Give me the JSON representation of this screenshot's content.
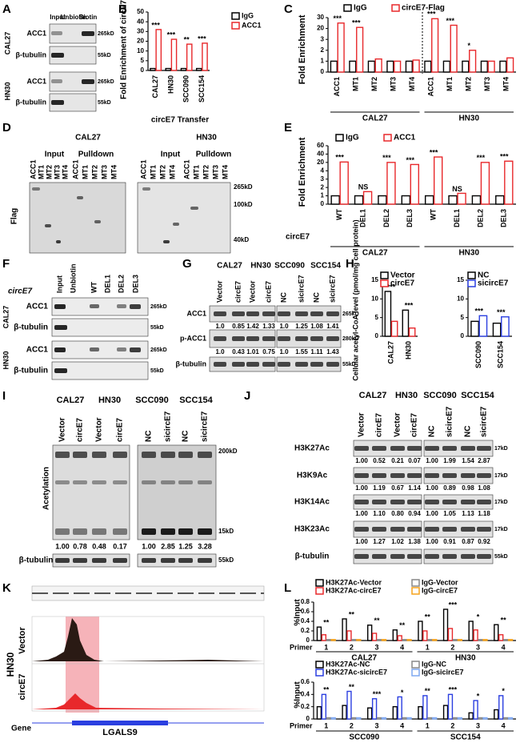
{
  "A": {
    "label": "A",
    "lanes": [
      "Input",
      "Unbiotin",
      "Biotin"
    ],
    "groups": [
      "CAL27",
      "HN30"
    ],
    "bands": [
      "ACC1",
      "β-tubulin",
      "ACC1",
      "β-tubulin"
    ],
    "sizes": [
      "265kD",
      "55kD",
      "265kD",
      "55kD"
    ]
  },
  "B": {
    "label": "B",
    "chart": {
      "type": "bar",
      "ylabel": "Fold Enrichment of circE7",
      "xlabel": "circE7 Transfer",
      "categories": [
        "CAL27",
        "HN30",
        "SCC090",
        "SCC154"
      ],
      "series": [
        {
          "name": "IgG",
          "color": "#000000",
          "values": [
            1,
            1,
            1,
            1
          ]
        },
        {
          "name": "ACC1",
          "color": "#e8282b",
          "values": [
            32,
            22,
            17,
            18
          ]
        }
      ],
      "sig": [
        "***",
        "***",
        "**",
        "***"
      ],
      "ylim": [
        0,
        50
      ],
      "yticks": [
        0,
        5,
        10,
        20,
        30,
        40,
        50
      ]
    }
  },
  "C": {
    "label": "C",
    "chart": {
      "type": "bar",
      "ylabel": "Fold Enrichment",
      "categories": [
        "ACC1",
        "MT1",
        "MT2",
        "MT3",
        "MT4",
        "ACC1",
        "MT1",
        "MT2",
        "MT3",
        "MT4"
      ],
      "groups": [
        "CAL27",
        "HN30"
      ],
      "series": [
        {
          "name": "IgG",
          "color": "#000000",
          "values": [
            1,
            1,
            1,
            1,
            1,
            1,
            1,
            1,
            1,
            1
          ]
        },
        {
          "name": "circE7-Flag",
          "color": "#e8282b",
          "values": [
            25,
            21,
            1.2,
            1,
            1.1,
            29,
            23,
            2,
            1,
            1.3
          ]
        }
      ],
      "sig": [
        "***",
        "***",
        null,
        null,
        null,
        "***",
        "***",
        "*",
        null,
        null
      ],
      "ylim": [
        0,
        30
      ],
      "yticks": [
        0,
        1,
        2,
        3,
        20,
        30
      ]
    }
  },
  "D": {
    "label": "D",
    "groups": [
      "CAL27",
      "HN30"
    ],
    "subgroups": [
      "Input",
      "Pulldown",
      "Input",
      "Pulldown"
    ],
    "lanes": [
      "ACC1",
      "MT1",
      "MT2",
      "MT3",
      "MT4",
      "ACC1",
      "MT1",
      "MT2",
      "MT3",
      "MT4",
      "ACC1",
      "MT1",
      "MT2",
      "MT4",
      "ACC1",
      "MT1",
      "MT2",
      "MT3",
      "MT4"
    ],
    "blot": "Flag",
    "sizes": [
      "265kD",
      "100kD",
      "40kD"
    ]
  },
  "E": {
    "label": "E",
    "row_label": "circE7",
    "chart": {
      "type": "bar",
      "ylabel": "Fold Enrichment",
      "categories": [
        "WT",
        "DEL1",
        "DEL2",
        "DEL3",
        "WT",
        "DEL1",
        "DEL2",
        "DEL3"
      ],
      "groups": [
        "CAL27",
        "HN30"
      ],
      "series": [
        {
          "name": "IgG",
          "color": "#000000",
          "values": [
            1,
            1,
            1,
            1,
            1,
            1,
            1,
            1
          ]
        },
        {
          "name": "ACC1",
          "color": "#e8282b",
          "values": [
            21,
            1.5,
            20,
            16,
            33,
            1.3,
            20,
            23
          ]
        }
      ],
      "sig": [
        "***",
        "NS",
        "***",
        "***",
        "***",
        "NS",
        "***",
        "***"
      ],
      "ylim": [
        0,
        60
      ],
      "yticks": [
        0,
        1,
        2,
        3,
        4,
        20,
        40,
        60
      ]
    }
  },
  "F": {
    "label": "F",
    "row_label": "circE7",
    "lanes": [
      "Input",
      "Unbiotin",
      "WT",
      "DEL1",
      "DEL2",
      "DEL3"
    ],
    "groups": [
      "CAL27",
      "HN30"
    ],
    "bands": [
      "ACC1",
      "β-tubulin",
      "ACC1",
      "β-tubulin"
    ],
    "sizes": [
      "265kD",
      "55kD",
      "265kD",
      "55kD"
    ]
  },
  "G": {
    "label": "G",
    "groups": [
      "CAL27",
      "HN30",
      "SCC090",
      "SCC154"
    ],
    "lanes": [
      "Vector",
      "circE7",
      "Vector",
      "circE7",
      "NC",
      "sicircE7",
      "NC",
      "sicircE7"
    ],
    "rows": [
      {
        "name": "ACC1",
        "size": "265kD",
        "quant": [
          "1.0",
          "0.85",
          "1.42",
          "1.33",
          "1.0",
          "1.25",
          "1.08",
          "1.41"
        ]
      },
      {
        "name": "p-ACC1",
        "size": "280kD",
        "quant": [
          "1.0",
          "0.43",
          "1.01",
          "0.75",
          "1.0",
          "1.55",
          "1.11",
          "1.43"
        ]
      },
      {
        "name": "β-tubulin",
        "size": "55kD"
      }
    ]
  },
  "H": {
    "label": "H",
    "ylabel": "Cellular acetyl-CoA level (pmol/mg cell protein)",
    "charts": [
      {
        "type": "bar",
        "categories": [
          "CAL27",
          "HN30"
        ],
        "series": [
          {
            "name": "Vector",
            "color": "#000000",
            "values": [
              12,
              7
            ]
          },
          {
            "name": "circE7",
            "color": "#e8282b",
            "values": [
              4,
              2.2
            ]
          }
        ],
        "sig": [
          "***",
          "***"
        ],
        "ylim": [
          0,
          15
        ],
        "yticks": [
          0,
          5,
          10,
          15
        ]
      },
      {
        "type": "bar",
        "categories": [
          "SCC090",
          "SCC154"
        ],
        "series": [
          {
            "name": "NC",
            "color": "#000000",
            "values": [
              4,
              3.5
            ]
          },
          {
            "name": "sicircE7",
            "color": "#2b3fe0",
            "values": [
              5.5,
              5.2
            ]
          }
        ],
        "sig": [
          "***",
          "***"
        ],
        "ylim": [
          0,
          15
        ],
        "yticks": [
          0,
          5,
          10,
          15
        ]
      }
    ]
  },
  "I": {
    "label": "I",
    "groups": [
      "CAL27",
      "HN30",
      "SCC090",
      "SCC154"
    ],
    "lanes": [
      "Vector",
      "circE7",
      "Vector",
      "circE7",
      "NC",
      "sicircE7",
      "NC",
      "sicircE7"
    ],
    "blot": "Acetylation",
    "sizes": [
      "200kD",
      "15kD",
      "55kD"
    ],
    "quant": [
      "1.00",
      "0.78",
      "0.48",
      "0.17",
      "1.00",
      "2.85",
      "1.25",
      "3.28"
    ],
    "loading": "β-tubulin"
  },
  "J": {
    "label": "J",
    "groups": [
      "CAL27",
      "HN30",
      "SCC090",
      "SCC154"
    ],
    "lanes": [
      "Vector",
      "circE7",
      "Vector",
      "circE7",
      "NC",
      "sicircE7",
      "NC",
      "sicircE7"
    ],
    "rows": [
      {
        "name": "H3K27Ac",
        "size": "17kD",
        "quant": [
          "1.00",
          "0.52",
          "0.21",
          "0.07",
          "1.00",
          "1.99",
          "1.54",
          "2.87"
        ]
      },
      {
        "name": "H3K9Ac",
        "size": "17kD",
        "quant": [
          "1.00",
          "1.19",
          "0.67",
          "1.14",
          "1.00",
          "0.89",
          "0.98",
          "1.08"
        ]
      },
      {
        "name": "H3K14Ac",
        "size": "17kD",
        "quant": [
          "1.00",
          "1.10",
          "0.80",
          "0.94",
          "1.00",
          "1.05",
          "1.13",
          "1.18"
        ]
      },
      {
        "name": "H3K23Ac",
        "size": "17kD",
        "quant": [
          "1.00",
          "1.27",
          "1.02",
          "1.38",
          "1.00",
          "0.91",
          "0.87",
          "0.92"
        ]
      },
      {
        "name": "β-tubulin",
        "size": "55kD"
      }
    ]
  },
  "K": {
    "label": "K",
    "cell": "HN30",
    "tracks": [
      "Vector",
      "circE7"
    ],
    "gene_label": "Gene",
    "gene": "LGALS9"
  },
  "L": {
    "label": "L",
    "ylabel": "%Input",
    "primer": "Primer",
    "charts": [
      {
        "type": "bar",
        "categories": [
          "1",
          "2",
          "3",
          "4",
          "1",
          "2",
          "3",
          "4"
        ],
        "groups": [
          "CAL27",
          "HN30"
        ],
        "series": [
          {
            "name": "H3K27Ac-Vector",
            "color": "#000000",
            "values": [
              0.28,
              0.45,
              0.32,
              0.22,
              0.4,
              0.65,
              0.4,
              0.33
            ]
          },
          {
            "name": "H3K27Ac-circE7",
            "color": "#e8282b",
            "values": [
              0.12,
              0.2,
              0.15,
              0.1,
              0.2,
              0.25,
              0.22,
              0.12
            ]
          },
          {
            "name": "IgG-Vector",
            "color": "#888888",
            "values": [
              0.02,
              0.02,
              0.02,
              0.02,
              0.02,
              0.02,
              0.02,
              0.02
            ]
          },
          {
            "name": "IgG-circE7",
            "color": "#f5a21b",
            "values": [
              0.02,
              0.02,
              0.02,
              0.02,
              0.02,
              0.02,
              0.02,
              0.02
            ]
          }
        ],
        "sig": [
          "**",
          "**",
          "**",
          "**",
          "**",
          "***",
          "*",
          "**"
        ],
        "ylim": [
          0,
          0.8
        ],
        "yticks": [
          0,
          0.2,
          0.4,
          0.6,
          0.8
        ]
      },
      {
        "type": "bar",
        "categories": [
          "1",
          "2",
          "3",
          "4",
          "1",
          "2",
          "3",
          "4"
        ],
        "groups": [
          "SCC090",
          "SCC154"
        ],
        "series": [
          {
            "name": "H3K27Ac-NC",
            "color": "#000000",
            "values": [
              0.2,
              0.22,
              0.18,
              0.2,
              0.2,
              0.22,
              0.1,
              0.15
            ]
          },
          {
            "name": "H3K27Ac-sicircE7",
            "color": "#2b3fe0",
            "values": [
              0.4,
              0.45,
              0.33,
              0.36,
              0.38,
              0.4,
              0.3,
              0.38
            ]
          },
          {
            "name": "IgG-NC",
            "color": "#888888",
            "values": [
              0.02,
              0.02,
              0.02,
              0.02,
              0.02,
              0.02,
              0.02,
              0.02
            ]
          },
          {
            "name": "IgG-sicircE7",
            "color": "#7fa8f0",
            "values": [
              0.02,
              0.02,
              0.02,
              0.02,
              0.02,
              0.02,
              0.02,
              0.02
            ]
          }
        ],
        "sig": [
          "**",
          "**",
          "***",
          "*",
          "**",
          "***",
          "*",
          "*"
        ],
        "ylim": [
          0,
          0.6
        ],
        "yticks": [
          0,
          0.2,
          0.4,
          0.6
        ]
      }
    ]
  }
}
